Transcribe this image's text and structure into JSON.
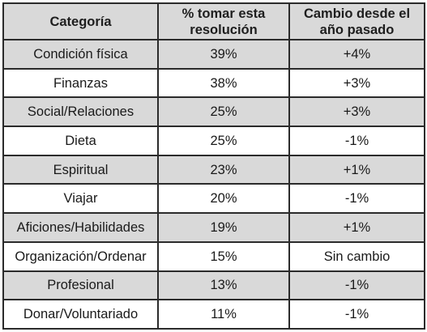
{
  "table": {
    "headers": [
      "Categoría",
      "% tomar esta resolución",
      "Cambio desde el año pasado"
    ],
    "rows": [
      {
        "category": "Condición física",
        "percent": "39%",
        "change": "+4%"
      },
      {
        "category": "Finanzas",
        "percent": "38%",
        "change": "+3%"
      },
      {
        "category": "Social/Relaciones",
        "percent": "25%",
        "change": "+3%"
      },
      {
        "category": "Dieta",
        "percent": "25%",
        "change": "-1%"
      },
      {
        "category": "Espiritual",
        "percent": "23%",
        "change": "+1%"
      },
      {
        "category": "Viajar",
        "percent": "20%",
        "change": "-1%"
      },
      {
        "category": "Aficiones/Habilidades",
        "percent": "19%",
        "change": "+1%"
      },
      {
        "category": "Organización/Ordenar",
        "percent": "15%",
        "change": "Sin cambio"
      },
      {
        "category": "Profesional",
        "percent": "13%",
        "change": "-1%"
      },
      {
        "category": "Donar/Voluntariado",
        "percent": "11%",
        "change": "-1%"
      }
    ]
  },
  "colors": {
    "shaded_row": "#d9d9d9",
    "plain_row": "#ffffff",
    "border": "#2b2b2b"
  }
}
